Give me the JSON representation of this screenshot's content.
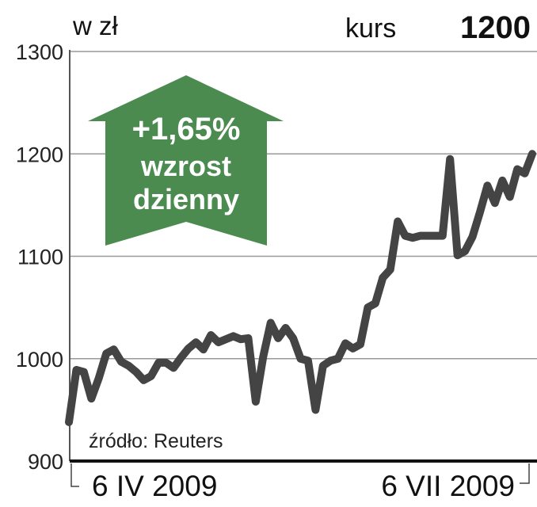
{
  "header": {
    "unit": "w zł",
    "kurs_label": "kurs",
    "kurs_value": "1200"
  },
  "badge": {
    "change": "+1,65%",
    "line1": "wzrost",
    "line2": "dzienny",
    "color": "#4b8b50"
  },
  "source": "źródło: Reuters",
  "chart_data": {
    "type": "line",
    "title": "",
    "xlabel": "",
    "ylabel": "w zł",
    "ylim": [
      900,
      1300
    ],
    "yticks": [
      "1300",
      "1200",
      "1100",
      "1000",
      "900"
    ],
    "xtick_labels": [
      "6 IV 2009",
      "6 VII 2009"
    ],
    "grid": true,
    "line_color": "#444444",
    "values": [
      938,
      989,
      987,
      961,
      981,
      1005,
      1009,
      997,
      993,
      987,
      979,
      983,
      996,
      996,
      991,
      1001,
      1010,
      1016,
      1009,
      1023,
      1016,
      1019,
      1022,
      1019,
      1020,
      958,
      1002,
      1035,
      1020,
      1030,
      1020,
      1000,
      998,
      950,
      993,
      998,
      1000,
      1015,
      1010,
      1014,
      1050,
      1054,
      1079,
      1087,
      1134,
      1120,
      1118,
      1120,
      1120,
      1120,
      1120,
      1195,
      1101,
      1105,
      1119,
      1143,
      1169,
      1152,
      1174,
      1158,
      1185,
      1181,
      1200
    ]
  }
}
